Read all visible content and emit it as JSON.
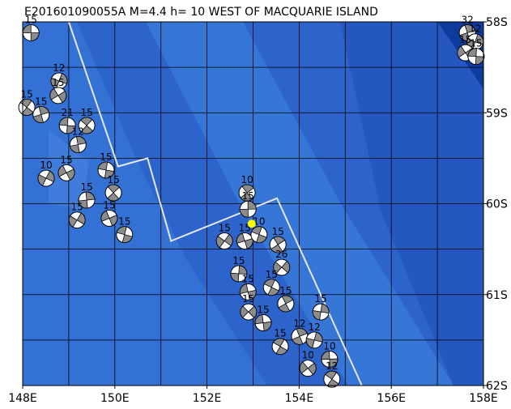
{
  "title": "E201601090055A M=4.4 h= 10 WEST OF MACQUARIE ISLAND",
  "map": {
    "xlim": [
      148,
      158
    ],
    "ylim": [
      -62,
      -58
    ],
    "xticks": [
      {
        "value": 148,
        "label": "148E"
      },
      {
        "value": 150,
        "label": "150E"
      },
      {
        "value": 152,
        "label": "152E"
      },
      {
        "value": 154,
        "label": "154E"
      },
      {
        "value": 156,
        "label": "156E"
      },
      {
        "value": 158,
        "label": "158E"
      }
    ],
    "yticks": [
      {
        "value": -58,
        "label": "58S"
      },
      {
        "value": -59,
        "label": "59S"
      },
      {
        "value": -60,
        "label": "60S"
      },
      {
        "value": -61,
        "label": "61S"
      },
      {
        "value": -62,
        "label": "62S"
      }
    ],
    "epicenter": {
      "lon": 152.97,
      "lat": -60.22,
      "color": "#ffff00"
    },
    "plate_boundary": {
      "lon": [
        149.0,
        150.07,
        150.71,
        151.22,
        153.52,
        155.36
      ],
      "lat": [
        -58.0,
        -59.59,
        -59.5,
        -60.41,
        -59.94,
        -62.0
      ]
    },
    "events": [
      {
        "lon": 148.18,
        "lat": -58.12,
        "depth": 15
      },
      {
        "lon": 148.09,
        "lat": -58.94,
        "depth": 15
      },
      {
        "lon": 148.4,
        "lat": -59.02,
        "depth": 15
      },
      {
        "lon": 148.79,
        "lat": -58.65,
        "depth": 12
      },
      {
        "lon": 148.77,
        "lat": -58.81,
        "depth": 15
      },
      {
        "lon": 148.97,
        "lat": -59.14,
        "depth": 21
      },
      {
        "lon": 149.39,
        "lat": -59.14,
        "depth": 15
      },
      {
        "lon": 149.2,
        "lat": -59.35,
        "depth": 12
      },
      {
        "lon": 148.51,
        "lat": -59.72,
        "depth": 10
      },
      {
        "lon": 148.95,
        "lat": -59.66,
        "depth": 15
      },
      {
        "lon": 149.81,
        "lat": -59.63,
        "depth": 15
      },
      {
        "lon": 149.97,
        "lat": -59.88,
        "depth": 15
      },
      {
        "lon": 149.39,
        "lat": -59.96,
        "depth": 15
      },
      {
        "lon": 149.18,
        "lat": -60.18,
        "depth": 15
      },
      {
        "lon": 149.88,
        "lat": -60.16,
        "depth": 15
      },
      {
        "lon": 150.21,
        "lat": -60.34,
        "depth": 15
      },
      {
        "lon": 152.87,
        "lat": -59.88,
        "depth": 10
      },
      {
        "lon": 152.89,
        "lat": -60.06,
        "depth": 15
      },
      {
        "lon": 152.38,
        "lat": -60.41,
        "depth": 15
      },
      {
        "lon": 152.82,
        "lat": -60.41,
        "depth": 15
      },
      {
        "lon": 153.13,
        "lat": -60.34,
        "depth": 10
      },
      {
        "lon": 153.54,
        "lat": -60.45,
        "depth": 15
      },
      {
        "lon": 152.69,
        "lat": -60.77,
        "depth": 15
      },
      {
        "lon": 153.62,
        "lat": -60.7,
        "depth": 26
      },
      {
        "lon": 152.89,
        "lat": -60.97,
        "depth": 15
      },
      {
        "lon": 153.4,
        "lat": -60.92,
        "depth": 15
      },
      {
        "lon": 153.71,
        "lat": -61.1,
        "depth": 15
      },
      {
        "lon": 154.47,
        "lat": -61.19,
        "depth": 15
      },
      {
        "lon": 152.9,
        "lat": -61.19,
        "depth": 15
      },
      {
        "lon": 153.22,
        "lat": -61.31,
        "depth": 15
      },
      {
        "lon": 153.59,
        "lat": -61.57,
        "depth": 15
      },
      {
        "lon": 154.01,
        "lat": -61.46,
        "depth": 12
      },
      {
        "lon": 154.33,
        "lat": -61.5,
        "depth": 12
      },
      {
        "lon": 154.19,
        "lat": -61.81,
        "depth": 10
      },
      {
        "lon": 154.66,
        "lat": -61.71,
        "depth": 10
      },
      {
        "lon": 154.71,
        "lat": -61.93,
        "depth": 12
      },
      {
        "lon": 157.65,
        "lat": -58.12,
        "depth": 32
      },
      {
        "lon": 157.82,
        "lat": -58.22,
        "depth": 12
      },
      {
        "lon": 157.61,
        "lat": -58.34,
        "depth": 15
      },
      {
        "lon": 157.84,
        "lat": -58.38,
        "depth": 15
      }
    ]
  }
}
